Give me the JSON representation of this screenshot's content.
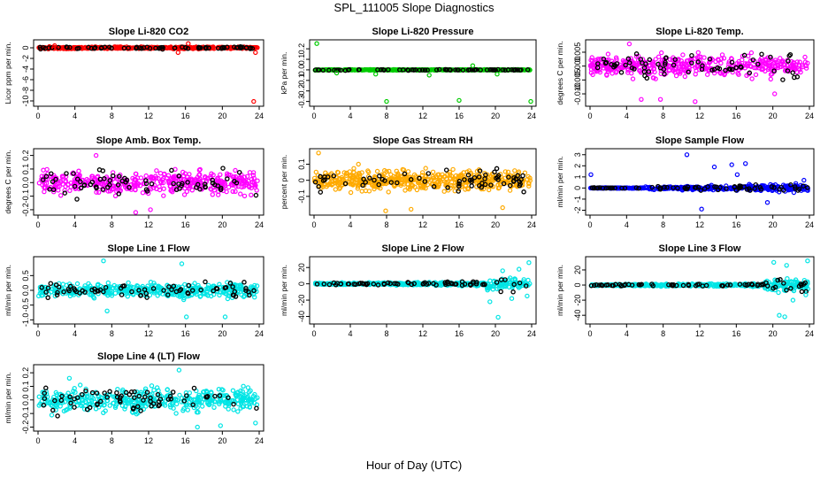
{
  "figure": {
    "title": "SPL_111005  Slope Diagnostics",
    "xlabel": "Hour of Day (UTC)"
  },
  "chart_data": [
    {
      "type": "scatter",
      "title": "Slope Li-820 CO2",
      "ylabel": "Licor ppm per min.",
      "xlim": [
        0,
        24
      ],
      "ylim": [
        -10.5,
        1
      ],
      "yticks": [
        0,
        -2,
        -4,
        -6,
        -8,
        -10
      ],
      "ytick_labels": [
        "0",
        "-2",
        "-4",
        "-6",
        "-8",
        "-10"
      ],
      "xticks": [
        0,
        4,
        8,
        12,
        16,
        20,
        24
      ],
      "color": "#ff0000",
      "style": "tight",
      "spread": 0.35,
      "outliers": [
        [
          1.8,
          0.4
        ],
        [
          15.2,
          -0.9
        ],
        [
          16.3,
          0.8
        ],
        [
          23.4,
          -10.1
        ],
        [
          23.6,
          -0.9
        ]
      ]
    },
    {
      "type": "scatter",
      "title": "Slope Li-820 Pressure",
      "ylabel": "kPa per min.",
      "xlim": [
        0,
        24
      ],
      "ylim": [
        -0.32,
        0.26
      ],
      "yticks": [
        0.2,
        0.1,
        0.0,
        -0.1,
        -0.2,
        -0.3
      ],
      "ytick_labels": [
        "0.2",
        "0.1",
        "0.0",
        "-0.1",
        "-0.2",
        "-0.3"
      ],
      "xticks": [
        0,
        4,
        8,
        12,
        16,
        20,
        24
      ],
      "color": "#00cc00",
      "style": "tight",
      "spread": 0.006,
      "outliers": [
        [
          0.3,
          0.25
        ],
        [
          8.0,
          -0.3
        ],
        [
          16.0,
          -0.29
        ],
        [
          23.9,
          -0.3
        ],
        [
          2.5,
          -0.03
        ],
        [
          6.8,
          -0.04
        ],
        [
          12.7,
          -0.05
        ],
        [
          17.5,
          0.04
        ],
        [
          20.2,
          -0.04
        ]
      ]
    },
    {
      "type": "scatter",
      "title": "Slope Li-820 Temp.",
      "ylabel": "degrees C per min.",
      "xlim": [
        0,
        24
      ],
      "ylim": [
        -0.0135,
        0.0085
      ],
      "yticks": [
        0.005,
        0.0,
        -0.005,
        -0.01
      ],
      "ytick_labels": [
        "0.005",
        "0.000",
        "-0.005",
        "-0.010"
      ],
      "xticks": [
        0,
        4,
        8,
        12,
        16,
        20,
        24
      ],
      "color": "#ff00ff",
      "style": "cloud",
      "spread": 0.0065,
      "outliers": [
        [
          4.3,
          0.008
        ],
        [
          5.6,
          -0.012
        ],
        [
          7.7,
          -0.012
        ],
        [
          11.5,
          -0.0128
        ],
        [
          20.2,
          -0.01
        ]
      ]
    },
    {
      "type": "scatter",
      "title": "Slope Amb. Box Temp.",
      "ylabel": "degrees C per min.",
      "xlim": [
        0,
        24
      ],
      "ylim": [
        -0.22,
        0.23
      ],
      "yticks": [
        0.2,
        0.1,
        0.0,
        -0.1,
        -0.2
      ],
      "ytick_labels": [
        "0.2",
        "0.1",
        "0.0",
        "-0.1",
        "-0.2"
      ],
      "xticks": [
        0,
        4,
        8,
        12,
        16,
        20,
        24
      ],
      "color": "#ff00ff",
      "style": "cloud",
      "spread": 0.14,
      "outliers": [
        [
          10.6,
          -0.22
        ],
        [
          12.2,
          -0.2
        ],
        [
          6.3,
          0.2
        ]
      ]
    },
    {
      "type": "scatter",
      "title": "Slope Gas Stream RH",
      "ylabel": "percent per min.",
      "xlim": [
        0,
        24
      ],
      "ylim": [
        -0.2,
        0.18
      ],
      "yticks": [
        0.1,
        0.0,
        -0.1
      ],
      "ytick_labels": [
        "0.1",
        "0",
        "-0.1"
      ],
      "xticks": [
        0,
        4,
        8,
        12,
        16,
        20,
        24
      ],
      "color": "#ffaa00",
      "style": "dense",
      "spread": 0.1,
      "outliers": [
        [
          0.5,
          0.17
        ],
        [
          4.9,
          0.1
        ],
        [
          7.9,
          -0.19
        ],
        [
          10.7,
          -0.18
        ],
        [
          20.8,
          -0.17
        ]
      ]
    },
    {
      "type": "scatter",
      "title": "Slope Sample Flow",
      "ylabel": "ml/min per min.",
      "xlim": [
        0,
        24
      ],
      "ylim": [
        -2.2,
        3.3
      ],
      "yticks": [
        3,
        2,
        1,
        0,
        -1,
        -2
      ],
      "ytick_labels": [
        "3",
        "2",
        "1",
        "0",
        "-1",
        "-2"
      ],
      "xticks": [
        0,
        4,
        8,
        12,
        16,
        20,
        24
      ],
      "color": "#0000ff",
      "style": "growing",
      "spread": 0.7,
      "outliers": [
        [
          0.1,
          1.2
        ],
        [
          10.6,
          3.0
        ],
        [
          12.2,
          -1.9
        ],
        [
          13.6,
          1.9
        ],
        [
          15.5,
          2.1
        ],
        [
          16.1,
          1.2
        ],
        [
          17.0,
          2.2
        ],
        [
          19.4,
          -1.3
        ],
        [
          23.4,
          0.7
        ]
      ]
    },
    {
      "type": "scatter",
      "title": "Slope Line 1 Flow",
      "ylabel": "ml/min per min.",
      "xlim": [
        0,
        24
      ],
      "ylim": [
        -1.05,
        1.05
      ],
      "yticks": [
        0.5,
        0.0,
        -0.5,
        -1.0
      ],
      "ytick_labels": [
        "0.5",
        "0.0",
        "-0.5",
        "-1.0"
      ],
      "xticks": [
        0,
        4,
        8,
        12,
        16,
        20,
        24
      ],
      "color": "#00e5e5",
      "style": "cloud",
      "spread": 0.4,
      "outliers": [
        [
          7.1,
          1.0
        ],
        [
          16.1,
          -0.9
        ],
        [
          15.6,
          0.9
        ],
        [
          20.3,
          -0.9
        ],
        [
          7.5,
          -0.7
        ]
      ]
    },
    {
      "type": "scatter",
      "title": "Slope Line 2 Flow",
      "ylabel": "ml/min per min.",
      "xlim": [
        0,
        24
      ],
      "ylim": [
        -46,
        30
      ],
      "yticks": [
        20,
        0,
        -20,
        -40
      ],
      "ytick_labels": [
        "20",
        "0",
        "-20",
        "-40"
      ],
      "xticks": [
        0,
        4,
        8,
        12,
        16,
        20,
        24
      ],
      "color": "#00e5e5",
      "style": "late-burst",
      "spread": 3,
      "outliers": [
        [
          20.3,
          -41
        ],
        [
          19.4,
          -22
        ],
        [
          21.8,
          -18
        ],
        [
          22.6,
          18
        ],
        [
          23.7,
          26
        ],
        [
          23.5,
          -15
        ],
        [
          20.8,
          16
        ]
      ]
    },
    {
      "type": "scatter",
      "title": "Slope Line 3 Flow",
      "ylabel": "ml/min per min.",
      "xlim": [
        0,
        24
      ],
      "ylim": [
        -48,
        34
      ],
      "yticks": [
        20,
        0,
        -20,
        -40
      ],
      "ytick_labels": [
        "20",
        "0",
        "-20",
        "-40"
      ],
      "xticks": [
        0,
        4,
        8,
        12,
        16,
        20,
        24
      ],
      "color": "#00e5e5",
      "style": "late-burst",
      "spread": 3,
      "outliers": [
        [
          20.7,
          -40
        ],
        [
          21.3,
          -42
        ],
        [
          20.1,
          30
        ],
        [
          21.5,
          26
        ],
        [
          23.8,
          32
        ],
        [
          23.6,
          -13
        ],
        [
          22.2,
          -20
        ]
      ]
    },
    {
      "type": "scatter",
      "title": "Slope Line 4 (LT) Flow",
      "ylabel": "ml/min per min.",
      "xlim": [
        0,
        24
      ],
      "ylim": [
        -0.21,
        0.24
      ],
      "yticks": [
        0.2,
        0.1,
        0.0,
        -0.1,
        -0.2
      ],
      "ytick_labels": [
        "0.2",
        "0.1",
        "0.0",
        "-0.1",
        "-0.2"
      ],
      "xticks": [
        0,
        4,
        8,
        12,
        16,
        20,
        24
      ],
      "color": "#00e5e5",
      "style": "cloud",
      "spread": 0.14,
      "outliers": [
        [
          15.3,
          0.22
        ],
        [
          17.3,
          -0.2
        ],
        [
          3.4,
          0.16
        ],
        [
          23.6,
          -0.17
        ],
        [
          19.8,
          -0.19
        ]
      ]
    }
  ]
}
